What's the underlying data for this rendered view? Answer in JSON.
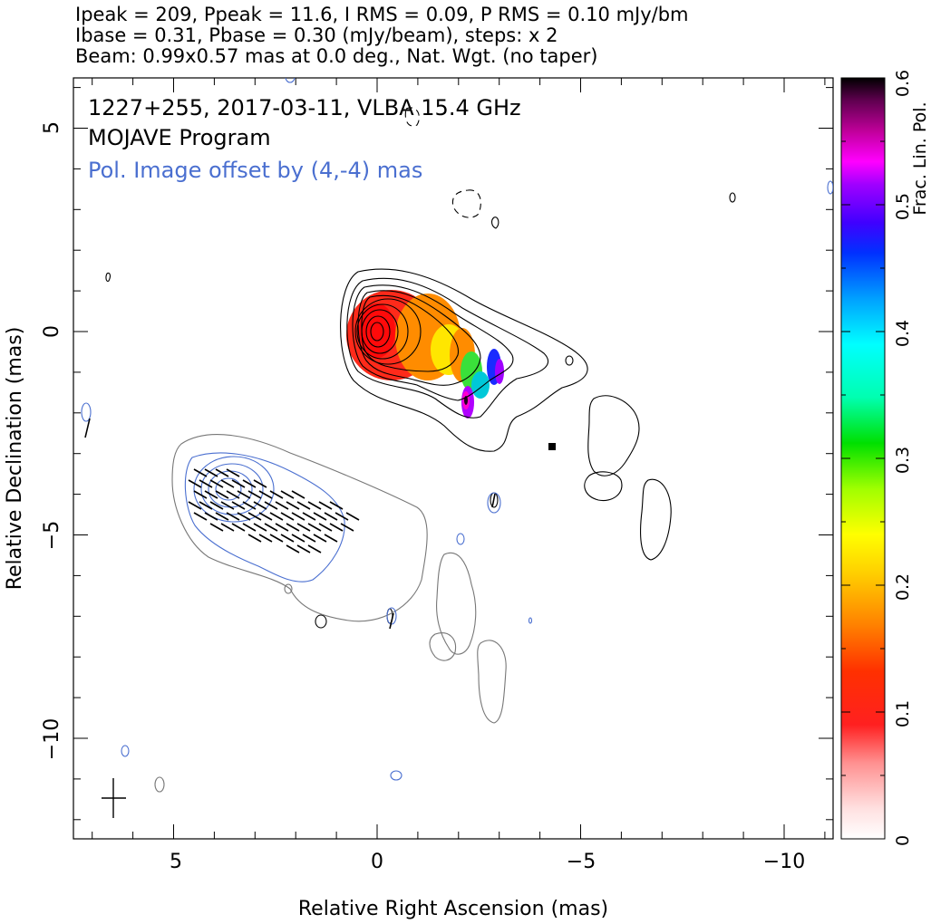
{
  "header": {
    "line1": "Ipeak = 209, Ppeak = 11.6, I RMS = 0.09, P RMS = 0.10 mJy/bm",
    "line2": "Ibase = 0.31, Pbase = 0.30 (mJy/beam), steps: x 2",
    "line3": "Beam: 0.99x0.57 mas at 0.0 deg., Nat. Wgt. (no taper)"
  },
  "chart_data": {
    "type": "contour",
    "title": "1227+255, 2017-03-11, VLBA 15.4 GHz",
    "subtitle": "MOJAVE Program",
    "annotation": "Pol. Image offset by (4,-4) mas",
    "xlabel": "Relative Right Ascension (mas)",
    "ylabel": "Relative Declination (mas)",
    "xlim": [
      7.5,
      -11.2
    ],
    "ylim": [
      -12.4,
      6.2
    ],
    "xticks": [
      5,
      0,
      -5,
      -10
    ],
    "xtick_labels": [
      "5",
      "0",
      "−5",
      "−10"
    ],
    "yticks": [
      5,
      0,
      -5,
      -10
    ],
    "ytick_labels": [
      "5",
      "0",
      "−5",
      "−10"
    ],
    "colorbar": {
      "label": "Frac. Lin. Pol.",
      "range": [
        0,
        0.6
      ],
      "ticks": [
        0,
        0.1,
        0.2,
        0.3,
        0.4,
        0.5,
        0.6
      ],
      "tick_labels": [
        "0",
        "0.1",
        "0.2",
        "0.3",
        "0.4",
        "0.5",
        "0.6"
      ]
    },
    "core": {
      "x": 0,
      "y": 0
    },
    "stokes_i_contour_levels_mJy_per_beam": [
      0.31,
      0.62,
      1.24,
      2.48,
      4.96,
      9.92,
      19.84,
      39.68,
      79.36,
      158.72
    ],
    "polarized_contour_levels_mJy_per_beam": [
      0.3,
      0.6,
      1.2,
      2.4,
      4.8,
      9.6
    ],
    "pol_image_offset_mas": [
      4,
      -4
    ],
    "fractional_pol_max": 0.6,
    "marker": {
      "x": -4.3,
      "y": -2.85
    },
    "beam": {
      "major_mas": 0.99,
      "minor_mas": 0.57,
      "pa_deg": 0.0,
      "x": 6.5,
      "y": -11.5
    }
  },
  "colors": {
    "stokes_contour": "#000000",
    "pol_contour": "#4a6fd0",
    "pol_total_contour": "#777777",
    "annotation_blue": "#4a6fd0"
  }
}
